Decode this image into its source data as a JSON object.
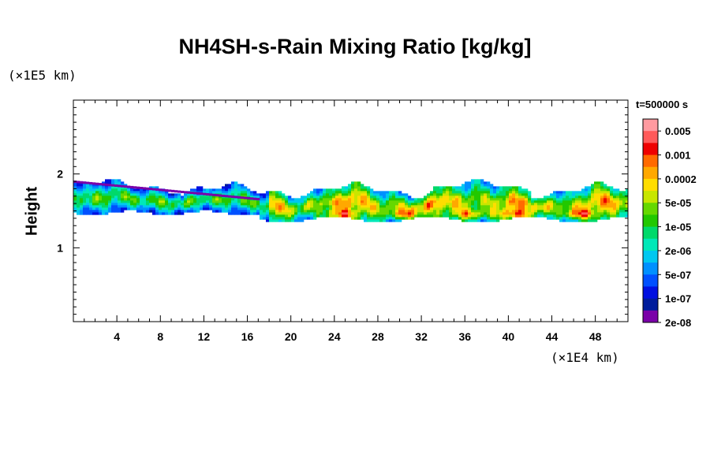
{
  "chart_data": {
    "type": "heatmap",
    "title": "NH4SH-s-Rain Mixing Ratio [kg/kg]",
    "ylabel": "Height",
    "xlabel": "",
    "x_unit": "(×1E4 km)",
    "y_unit": "(×1E5 km)",
    "time_label": "t=500000 s",
    "xlim": [
      0,
      51
    ],
    "ylim": [
      0,
      3
    ],
    "x_ticks": [
      4,
      8,
      12,
      16,
      20,
      24,
      28,
      32,
      36,
      40,
      44,
      48
    ],
    "y_ticks": [
      1,
      2
    ],
    "colorbar": {
      "labels": [
        "0.005",
        "0.001",
        "0.0002",
        "5e-05",
        "1e-05",
        "2e-06",
        "5e-07",
        "1e-07",
        "2e-08"
      ],
      "colors": [
        "#ff9aa0",
        "#ff5a5a",
        "#ee0000",
        "#ff6a00",
        "#ffa800",
        "#ffdd00",
        "#c8e600",
        "#66d800",
        "#22c800",
        "#00d96a",
        "#00e8b8",
        "#00c8f0",
        "#0090ff",
        "#0050ff",
        "#0010e0",
        "#001c9c",
        "#7a00a8"
      ]
    },
    "cloud_layer": {
      "x_range": [
        0,
        51
      ],
      "height_range": [
        1.3,
        1.95
      ],
      "peak_regions_x": [
        24.5,
        30.5,
        36.5,
        40.5,
        46.5
      ],
      "peak_height": 1.45
    }
  }
}
